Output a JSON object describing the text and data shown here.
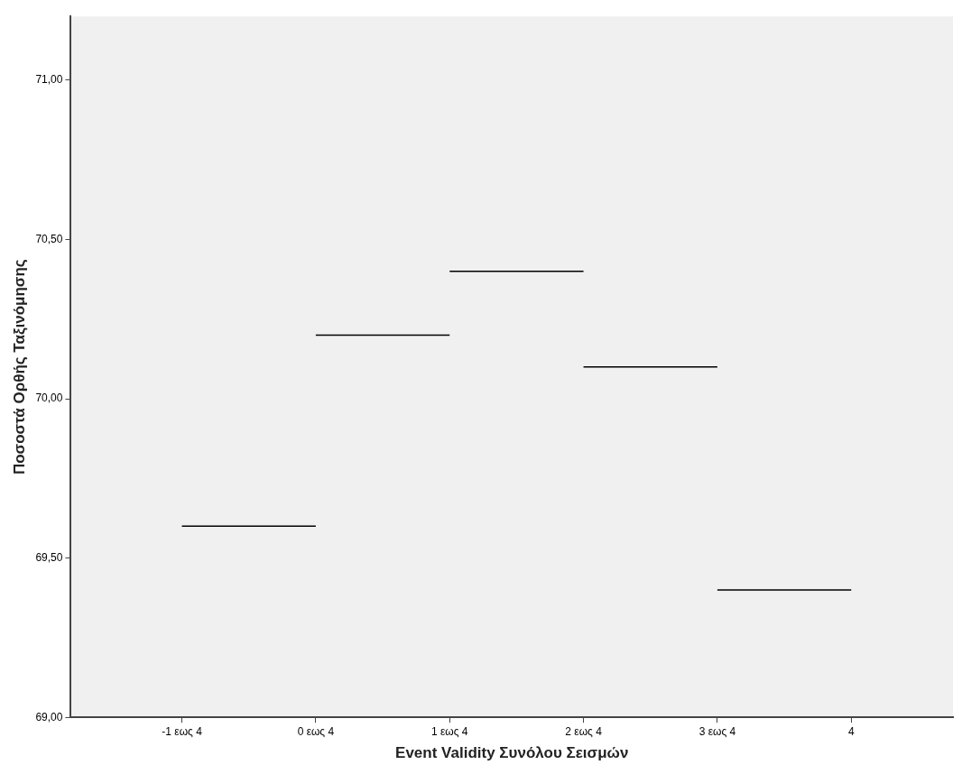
{
  "chart_data": {
    "type": "step",
    "xlabel": "Event Validity Συνόλου Σεισμών",
    "ylabel": "Ποσοστά Ορθής Ταξινόμησης",
    "categories": [
      "-1 εως 4",
      "0 εως 4",
      "1 εως 4",
      "2 εως 4",
      "3 εως 4",
      "4"
    ],
    "series": [
      {
        "color": "#000000",
        "values": [
          69.6,
          70.2,
          70.4,
          70.1,
          69.4,
          69.4
        ]
      }
    ],
    "ylim": [
      69,
      71.2
    ],
    "yticks": [
      {
        "value": 69,
        "label": "69,00"
      },
      {
        "value": 69.5,
        "label": "69,50"
      },
      {
        "value": 70,
        "label": "70,00"
      },
      {
        "value": 70.5,
        "label": "70,50"
      },
      {
        "value": 71,
        "label": "71,00"
      }
    ],
    "grid": false,
    "legend": false
  }
}
